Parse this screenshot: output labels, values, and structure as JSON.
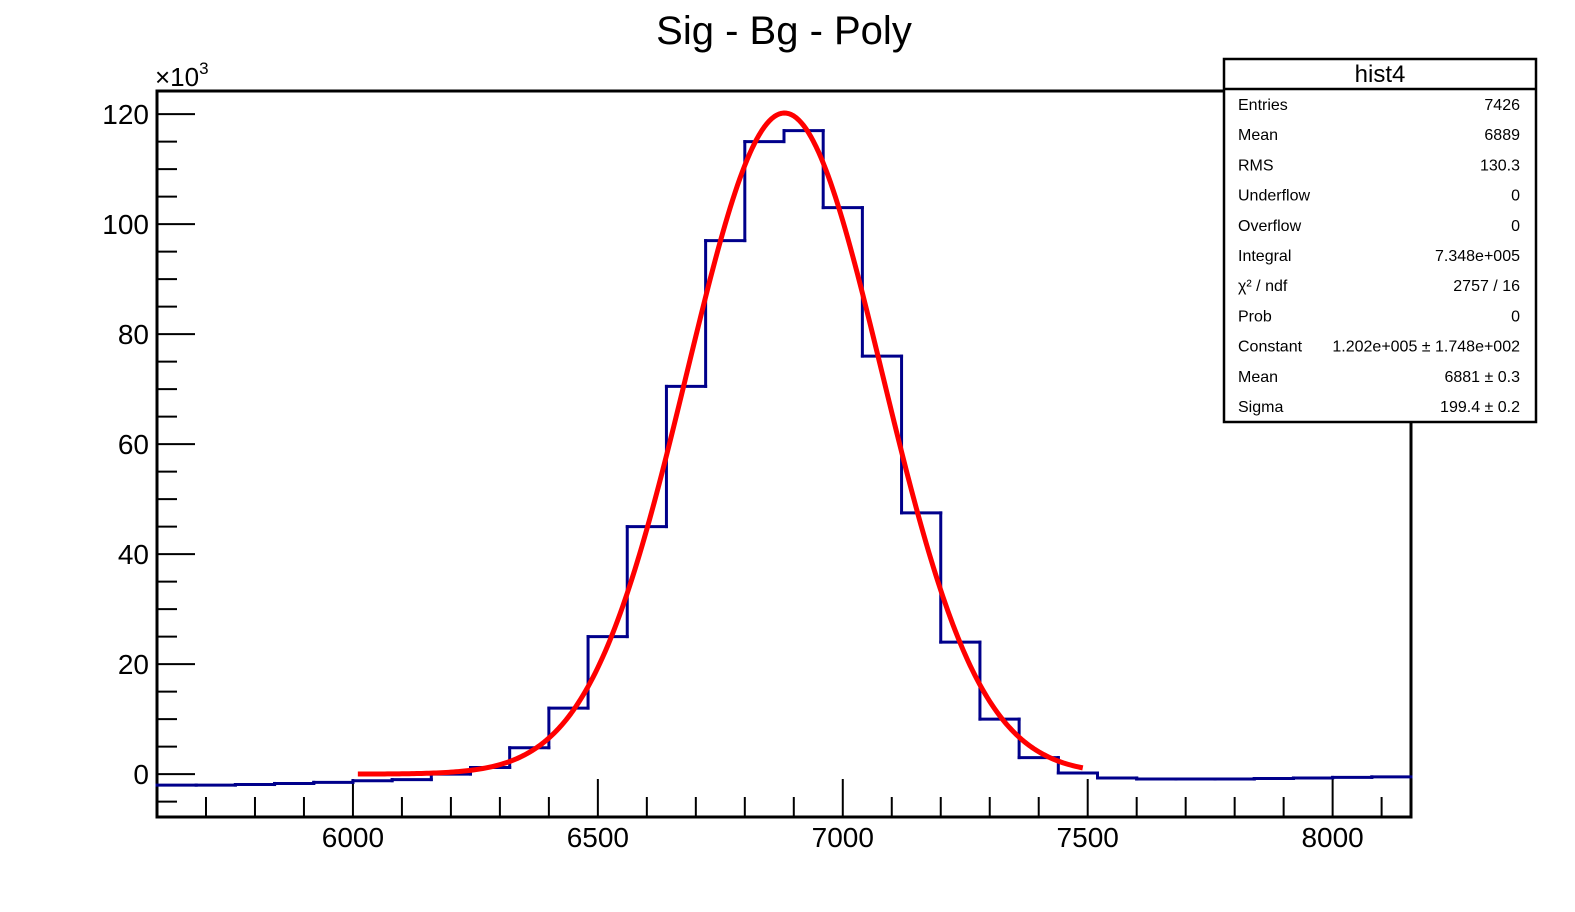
{
  "chart_data": {
    "type": "bar",
    "title": "Sig - Bg - Poly",
    "xlabel": "",
    "ylabel": "",
    "y_multiplier_label": "×10",
    "y_multiplier_exp": "3",
    "xlim": [
      5600,
      8160
    ],
    "ylim": [
      -7.8,
      124.2
    ],
    "x_ticks": [
      6000,
      6500,
      7000,
      7500,
      8000
    ],
    "x_tick_labels": [
      "6000",
      "6500",
      "7000",
      "7500",
      "8000"
    ],
    "y_ticks": [
      0,
      20,
      40,
      60,
      80,
      100,
      120
    ],
    "y_tick_labels": [
      "0",
      "20",
      "40",
      "60",
      "80",
      "100",
      "120"
    ],
    "grid": false,
    "legend": "none",
    "histogram": {
      "name": "hist4",
      "color": "#00008b",
      "bin_edges": [
        5600,
        5680,
        5760,
        5840,
        5920,
        6000,
        6080,
        6160,
        6240,
        6320,
        6400,
        6480,
        6560,
        6640,
        6720,
        6800,
        6880,
        6960,
        7040,
        7120,
        7200,
        7280,
        7360,
        7440,
        7520,
        7600,
        7680,
        7760,
        7840,
        7920,
        8000,
        8080,
        8160
      ],
      "values": [
        -2.0,
        -2.0,
        -1.9,
        -1.7,
        -1.5,
        -1.2,
        -1.0,
        0.0,
        1.2,
        4.8,
        12.0,
        25.0,
        45.0,
        70.5,
        97.0,
        115.0,
        117.0,
        103.0,
        76.0,
        47.5,
        24.0,
        10.0,
        3.0,
        0.2,
        -0.7,
        -0.9,
        -0.9,
        -0.9,
        -0.8,
        -0.7,
        -0.6,
        -0.5
      ]
    },
    "fit": {
      "type": "gaus",
      "color": "#ff0000",
      "x_range": [
        6010,
        7490
      ],
      "constant": 120.2,
      "mean": 6881,
      "sigma": 199.4
    },
    "stats_box": {
      "title": "hist4",
      "rows": [
        {
          "label": "Entries",
          "value": "7426"
        },
        {
          "label": "Mean",
          "value": "6889"
        },
        {
          "label": "RMS",
          "value": "130.3"
        },
        {
          "label": "Underflow",
          "value": "0"
        },
        {
          "label": "Overflow",
          "value": "0"
        },
        {
          "label": "Integral",
          "value": "7.348e+005"
        },
        {
          "label": "χ² / ndf",
          "value": "2757 / 16"
        },
        {
          "label": "Prob",
          "value": "0"
        },
        {
          "label": "Constant",
          "value": "1.202e+005 ± 1.748e+002"
        },
        {
          "label": "Mean",
          "value": "6881 ± 0.3"
        },
        {
          "label": "Sigma",
          "value": "199.4 ± 0.2"
        }
      ]
    }
  }
}
